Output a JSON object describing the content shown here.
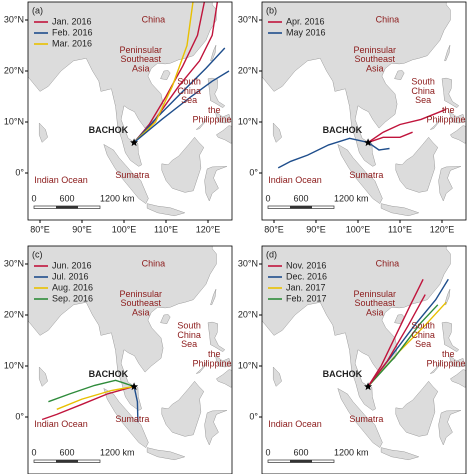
{
  "lat_labels": [
    "30°N",
    "20°N",
    "10°N",
    "0°"
  ],
  "lon_labels": [
    "80°E",
    "90°E",
    "100°E",
    "110°E",
    "120°E"
  ],
  "site": "BACHOK",
  "places": [
    [
      "China"
    ],
    [
      "Peninsular",
      "Southeast",
      "Asia"
    ],
    [
      "South",
      "China",
      "Sea"
    ],
    [
      "the",
      "Philippines"
    ],
    [
      "Sumatra"
    ],
    [
      "Indian Ocean"
    ]
  ],
  "scale_labels": [
    "0",
    "600",
    "1200 km"
  ],
  "panels": [
    {
      "label": "(a)",
      "legend": [
        {
          "name": "Jan. 2016",
          "color": "#c0143c"
        },
        {
          "name": "Feb. 2016",
          "color": "#1f4e8c"
        },
        {
          "name": "Mar. 2016",
          "color": "#e8c000"
        }
      ]
    },
    {
      "label": "(b)",
      "legend": [
        {
          "name": "Apr. 2016",
          "color": "#c0143c"
        },
        {
          "name": "May 2016",
          "color": "#1f4e8c"
        }
      ]
    },
    {
      "label": "(c)",
      "legend": [
        {
          "name": "Jun. 2016",
          "color": "#c0143c"
        },
        {
          "name": "Jul. 2016",
          "color": "#1f4e8c"
        },
        {
          "name": "Aug. 2016",
          "color": "#e8c000"
        },
        {
          "name": "Sep. 2016",
          "color": "#2e8b3a"
        }
      ]
    },
    {
      "label": "(d)",
      "legend": [
        {
          "name": "Nov. 2016",
          "color": "#c0143c"
        },
        {
          "name": "Dec. 2016",
          "color": "#1f4e8c"
        },
        {
          "name": "Jan. 2017",
          "color": "#e8c000"
        },
        {
          "name": "Feb. 2017",
          "color": "#2e8b3a"
        }
      ]
    }
  ]
}
